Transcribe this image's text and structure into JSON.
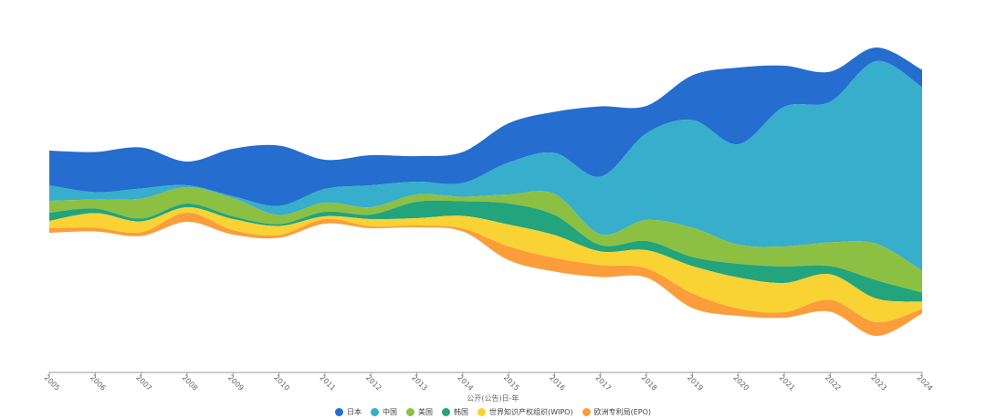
{
  "chart_data": {
    "type": "area",
    "subtype": "streamgraph",
    "title": "",
    "xlabel": "公开(公告)日-年",
    "ylabel": "",
    "x": [
      "2005",
      "2006",
      "2007",
      "2008",
      "2009",
      "2010",
      "2011",
      "2012",
      "2013",
      "2014",
      "2015",
      "2016",
      "2017",
      "2018",
      "2019",
      "2020",
      "2021",
      "2022",
      "2023",
      "2024"
    ],
    "series": [
      {
        "name": "日本",
        "color": "#256dcf",
        "values": [
          38,
          44,
          45,
          26,
          52,
          66,
          32,
          33,
          28,
          34,
          43,
          45,
          77,
          30,
          49,
          84,
          45,
          33,
          15,
          19
        ]
      },
      {
        "name": "中国",
        "color": "#37aecb",
        "values": [
          17,
          8,
          11,
          2,
          2,
          10,
          15,
          24,
          14,
          15,
          35,
          45,
          63,
          95,
          118,
          110,
          153,
          154,
          200,
          201
        ]
      },
      {
        "name": "美国",
        "color": "#8cc043",
        "values": [
          13,
          10,
          22,
          18,
          20,
          10,
          10,
          8,
          8,
          5,
          10,
          23,
          12,
          23,
          32,
          21,
          22,
          26,
          40,
          24
        ]
      },
      {
        "name": "韩国",
        "color": "#22a47c",
        "values": [
          9,
          5,
          3,
          4,
          3,
          2,
          5,
          5,
          18,
          16,
          23,
          22,
          7,
          10,
          10,
          15,
          18,
          9,
          20,
          10
        ]
      },
      {
        "name": "世界知识产权组织(WIPO)",
        "color": "#f9d234",
        "values": [
          8,
          16,
          12,
          6,
          12,
          10,
          3,
          8,
          8,
          14,
          24,
          25,
          15,
          20,
          30,
          34,
          32,
          28,
          26,
          8
        ]
      },
      {
        "name": "欧洲专利局(EPO)",
        "color": "#fb9d3b",
        "values": [
          5,
          4,
          4,
          10,
          5,
          3,
          5,
          2,
          2,
          3,
          15,
          15,
          13,
          10,
          16,
          8,
          6,
          13,
          15,
          5
        ]
      }
    ],
    "legend_position": "bottom",
    "grid": false
  }
}
